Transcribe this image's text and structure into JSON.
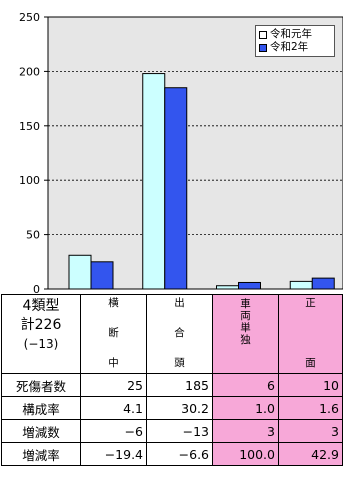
{
  "chart_data": {
    "type": "bar",
    "categories": [
      "横断中",
      "出合頭",
      "車両単独",
      "正面"
    ],
    "series": [
      {
        "name": "令和元年",
        "values": [
          31,
          198,
          3,
          7
        ],
        "color": "#ccffff"
      },
      {
        "name": "令和2年",
        "values": [
          25,
          185,
          6,
          10
        ],
        "color": "#3355ee"
      }
    ],
    "ylim": [
      0,
      250
    ],
    "yticks": [
      0,
      50,
      100,
      150,
      200,
      250
    ],
    "grid": true,
    "legend_position": "top-right",
    "plot_background": "#e6e6e6"
  },
  "table": {
    "header": {
      "label_lines": [
        "4類型",
        "計226",
        "(−13)"
      ]
    },
    "columns": [
      {
        "chars": [
          "横",
          "断",
          "中"
        ],
        "pink": false
      },
      {
        "chars": [
          "出",
          "合",
          "頭"
        ],
        "pink": false
      },
      {
        "chars": [
          "車",
          "両",
          "単",
          "独"
        ],
        "pink": true
      },
      {
        "chars": [
          "正",
          "面"
        ],
        "pink": true
      }
    ],
    "rows": [
      {
        "label": "死傷者数",
        "values": [
          "25",
          "185",
          "6",
          "10"
        ]
      },
      {
        "label": "構成率",
        "values": [
          "4.1",
          "30.2",
          "1.0",
          "1.6"
        ]
      },
      {
        "label": "増減数",
        "values": [
          "−6",
          "−13",
          "3",
          "3"
        ]
      },
      {
        "label": "増減率",
        "values": [
          "−19.4",
          "−6.6",
          "100.0",
          "42.9"
        ]
      }
    ]
  }
}
